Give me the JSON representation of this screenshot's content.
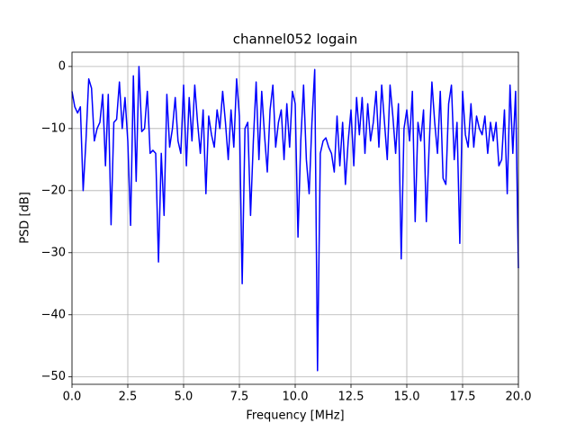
{
  "chart_data": {
    "type": "line",
    "title": "channel052 logain",
    "xlabel": "Frequency [MHz]",
    "ylabel": "PSD [dB]",
    "x": [
      0,
      0.125,
      0.25,
      0.375,
      0.5,
      0.625,
      0.75,
      0.875,
      1,
      1.125,
      1.25,
      1.375,
      1.5,
      1.625,
      1.75,
      1.875,
      2,
      2.125,
      2.25,
      2.375,
      2.5,
      2.625,
      2.75,
      2.875,
      3,
      3.125,
      3.25,
      3.375,
      3.5,
      3.625,
      3.75,
      3.875,
      4,
      4.125,
      4.25,
      4.375,
      4.5,
      4.625,
      4.75,
      4.875,
      5,
      5.125,
      5.25,
      5.375,
      5.5,
      5.625,
      5.75,
      5.875,
      6,
      6.125,
      6.25,
      6.375,
      6.5,
      6.625,
      6.75,
      6.875,
      7,
      7.125,
      7.25,
      7.375,
      7.5,
      7.625,
      7.75,
      7.875,
      8,
      8.125,
      8.25,
      8.375,
      8.5,
      8.625,
      8.75,
      8.875,
      9,
      9.125,
      9.25,
      9.375,
      9.5,
      9.625,
      9.75,
      9.875,
      10,
      10.125,
      10.25,
      10.375,
      10.5,
      10.625,
      10.75,
      10.875,
      11,
      11.125,
      11.25,
      11.375,
      11.5,
      11.625,
      11.75,
      11.875,
      12,
      12.125,
      12.25,
      12.375,
      12.5,
      12.625,
      12.75,
      12.875,
      13,
      13.125,
      13.25,
      13.375,
      13.5,
      13.625,
      13.75,
      13.875,
      14,
      14.125,
      14.25,
      14.375,
      14.5,
      14.625,
      14.75,
      14.875,
      15,
      15.125,
      15.25,
      15.375,
      15.5,
      15.625,
      15.75,
      15.875,
      16,
      16.125,
      16.25,
      16.375,
      16.5,
      16.625,
      16.75,
      16.875,
      17,
      17.125,
      17.25,
      17.375,
      17.5,
      17.625,
      17.75,
      17.875,
      18,
      18.125,
      18.25,
      18.375,
      18.5,
      18.625,
      18.75,
      18.875,
      19,
      19.125,
      19.25,
      19.375,
      19.5,
      19.625,
      19.75,
      19.875,
      20
    ],
    "series": [
      {
        "color": "#0000ff",
        "values": [
          -4,
          -6.5,
          -7.5,
          -6.5,
          -20,
          -12,
          -2,
          -3.5,
          -12,
          -10,
          -9,
          -4.5,
          -16,
          -4.5,
          -25.5,
          -9,
          -8.5,
          -2.5,
          -10,
          -5,
          -12,
          -25.6,
          -1.5,
          -18.5,
          0,
          -10.5,
          -10,
          -4,
          -14,
          -13.5,
          -14,
          -31.5,
          -14,
          -24,
          -4.5,
          -13,
          -10,
          -5,
          -12,
          -14,
          -3,
          -16,
          -5,
          -12,
          -3,
          -9,
          -14,
          -7,
          -20.5,
          -8,
          -11,
          -13,
          -7,
          -10,
          -4,
          -9,
          -15,
          -7,
          -13,
          -2,
          -8,
          -35,
          -10,
          -9,
          -24,
          -12,
          -2.5,
          -15,
          -4,
          -11,
          -17,
          -7,
          -3,
          -13,
          -9,
          -7,
          -15,
          -6,
          -13,
          -4,
          -6,
          -27.5,
          -12,
          -3,
          -15,
          -20.5,
          -9,
          -0.5,
          -49,
          -14,
          -12,
          -11.5,
          -13,
          -14,
          -17,
          -8,
          -16,
          -9,
          -19,
          -12,
          -7,
          -16,
          -5,
          -11,
          -5,
          -14,
          -6,
          -12,
          -9,
          -4,
          -13,
          -3,
          -9,
          -15,
          -3,
          -8,
          -14,
          -6,
          -31,
          -10,
          -7,
          -12,
          -4,
          -25,
          -9,
          -12,
          -7,
          -25,
          -13,
          -2.5,
          -9,
          -14,
          -4,
          -18,
          -19,
          -6,
          -3,
          -15,
          -9,
          -28.5,
          -4,
          -11,
          -13,
          -6,
          -13,
          -8,
          -10,
          -11,
          -8,
          -14,
          -9,
          -12,
          -9,
          -16,
          -15,
          -7,
          -20.5,
          -3,
          -14,
          -4,
          -32.5
        ]
      }
    ],
    "xlim": [
      0,
      20
    ],
    "ylim": [
      -51.2,
      2.3
    ],
    "xticks": [
      {
        "value": 0,
        "label": "0.0"
      },
      {
        "value": 2.5,
        "label": "2.5"
      },
      {
        "value": 5,
        "label": "5.0"
      },
      {
        "value": 7.5,
        "label": "7.5"
      },
      {
        "value": 10,
        "label": "10.0"
      },
      {
        "value": 12.5,
        "label": "12.5"
      },
      {
        "value": 15,
        "label": "15.0"
      },
      {
        "value": 17.5,
        "label": "17.5"
      },
      {
        "value": 20,
        "label": "20.0"
      }
    ],
    "yticks": [
      {
        "value": -50,
        "label": "−50"
      },
      {
        "value": -40,
        "label": "−40"
      },
      {
        "value": -30,
        "label": "−30"
      },
      {
        "value": -20,
        "label": "−20"
      },
      {
        "value": -10,
        "label": "−10"
      },
      0
    ],
    "grid": true
  }
}
